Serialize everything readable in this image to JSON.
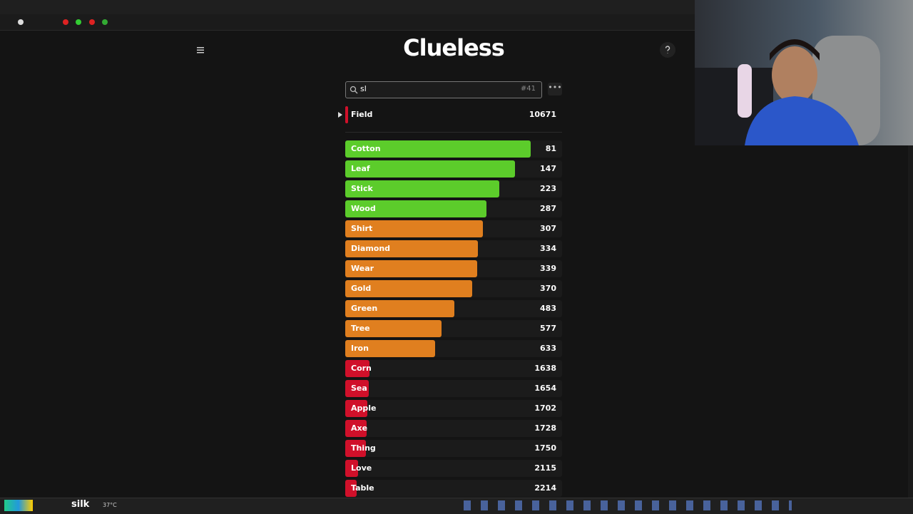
{
  "header": {
    "title": "Clueless"
  },
  "search": {
    "query": "sl",
    "guess_count": "#41"
  },
  "last_guess": {
    "word": "Field",
    "rank": 10671,
    "color": "#d0102a"
  },
  "guesses": [
    {
      "word": "Cotton",
      "rank": 81,
      "color": "#5ccc2b"
    },
    {
      "word": "Leaf",
      "rank": 147,
      "color": "#5ccc2b"
    },
    {
      "word": "Stick",
      "rank": 223,
      "color": "#5ccc2b"
    },
    {
      "word": "Wood",
      "rank": 287,
      "color": "#5ccc2b"
    },
    {
      "word": "Shirt",
      "rank": 307,
      "color": "#e07f1f"
    },
    {
      "word": "Diamond",
      "rank": 334,
      "color": "#e07f1f"
    },
    {
      "word": "Wear",
      "rank": 339,
      "color": "#e07f1f"
    },
    {
      "word": "Gold",
      "rank": 370,
      "color": "#e07f1f"
    },
    {
      "word": "Green",
      "rank": 483,
      "color": "#e07f1f"
    },
    {
      "word": "Tree",
      "rank": 577,
      "color": "#e07f1f"
    },
    {
      "word": "Iron",
      "rank": 633,
      "color": "#e07f1f"
    },
    {
      "word": "Corn",
      "rank": 1638,
      "color": "#d0102a"
    },
    {
      "word": "Sea",
      "rank": 1654,
      "color": "#d0102a"
    },
    {
      "word": "Apple",
      "rank": 1702,
      "color": "#d0102a"
    },
    {
      "word": "Axe",
      "rank": 1728,
      "color": "#d0102a"
    },
    {
      "word": "Thing",
      "rank": 1750,
      "color": "#d0102a"
    },
    {
      "word": "Love",
      "rank": 2115,
      "color": "#d0102a"
    },
    {
      "word": "Table",
      "rank": 2214,
      "color": "#d0102a"
    }
  ],
  "taskbar": {
    "app_text": "silk",
    "weather": "37°C"
  }
}
